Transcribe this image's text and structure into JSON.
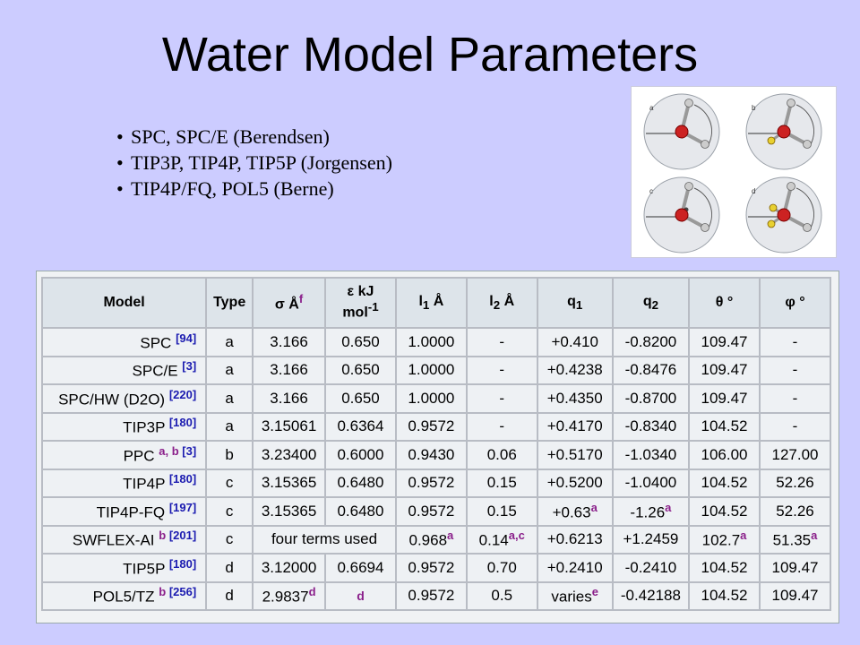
{
  "slide": {
    "title": "Water Model Parameters",
    "bullets": [
      "SPC, SPC/E  (Berendsen)",
      "TIP3P, TIP4P, TIP5P (Jorgensen)",
      "TIP4P/FQ, POL5 (Berne)"
    ]
  },
  "diagram": {
    "panel_labels": [
      "a",
      "b",
      "c",
      "d"
    ],
    "colors": {
      "oxygen": "#cc2222",
      "hydrogen": "#cccccc",
      "site": "#e8d030"
    }
  },
  "table": {
    "headers": [
      "Model",
      "Type",
      "σ Åf",
      "ε kJ mol-1",
      "l1 Å",
      "l2 Å",
      "q1",
      "q2",
      "θ °",
      "φ °"
    ],
    "rows": [
      {
        "model": "SPC",
        "ref": "[94]",
        "type": "a",
        "sigma": "3.166",
        "epsilon": "0.650",
        "l1": "1.0000",
        "l2": "-",
        "q1": "+0.410",
        "q2": "-0.8200",
        "theta": "109.47",
        "phi": "-"
      },
      {
        "model": "SPC/E",
        "ref": "[3]",
        "type": "a",
        "sigma": "3.166",
        "epsilon": "0.650",
        "l1": "1.0000",
        "l2": "-",
        "q1": "+0.4238",
        "q2": "-0.8476",
        "theta": "109.47",
        "phi": "-"
      },
      {
        "model": "SPC/HW (D2O)",
        "ref": "[220]",
        "type": "a",
        "sigma": "3.166",
        "epsilon": "0.650",
        "l1": "1.0000",
        "l2": "-",
        "q1": "+0.4350",
        "q2": "-0.8700",
        "theta": "109.47",
        "phi": "-"
      },
      {
        "model": "TIP3P",
        "ref": "[180]",
        "type": "a",
        "sigma": "3.15061",
        "epsilon": "0.6364",
        "l1": "0.9572",
        "l2": "-",
        "q1": "+0.4170",
        "q2": "-0.8340",
        "theta": "104.52",
        "phi": "-"
      },
      {
        "model": "PPC",
        "sup": "a, b",
        "ref": "[3]",
        "type": "b",
        "sigma": "3.23400",
        "epsilon": "0.6000",
        "l1": "0.9430",
        "l2": "0.06",
        "q1": "+0.5170",
        "q2": "-1.0340",
        "theta": "106.00",
        "phi": "127.00"
      },
      {
        "model": "TIP4P",
        "ref": "[180]",
        "type": "c",
        "sigma": "3.15365",
        "epsilon": "0.6480",
        "l1": "0.9572",
        "l2": "0.15",
        "q1": "+0.5200",
        "q2": "-1.0400",
        "theta": "104.52",
        "phi": "52.26"
      },
      {
        "model": "TIP4P-FQ",
        "ref": "[197]",
        "type": "c",
        "sigma": "3.15365",
        "epsilon": "0.6480",
        "l1": "0.9572",
        "l2": "0.15",
        "q1": "+0.63",
        "q1_sup": "a",
        "q2": "-1.26",
        "q2_sup": "a",
        "theta": "104.52",
        "phi": "52.26"
      },
      {
        "model": "SWFLEX-AI",
        "sup": "b",
        "ref": "[201]",
        "type": "c",
        "sigma_epsilon": "four terms used",
        "l1": "0.968",
        "l1_sup": "a",
        "l2": "0.14",
        "l2_sup": "a,c",
        "q1": "+0.6213",
        "q2": "+1.2459",
        "theta": "102.7",
        "theta_sup": "a",
        "phi": "51.35",
        "phi_sup": "a"
      },
      {
        "model": "TIP5P",
        "ref": "[180]",
        "type": "d",
        "sigma": "3.12000",
        "epsilon": "0.6694",
        "l1": "0.9572",
        "l2": "0.70",
        "q1": "+0.2410",
        "q2": "-0.2410",
        "theta": "104.52",
        "phi": "109.47"
      },
      {
        "model": "POL5/TZ",
        "sup": "b",
        "ref": "[256]",
        "type": "d",
        "sigma": "2.9837",
        "sigma_sup": "d",
        "epsilon": "d",
        "l1": "0.9572",
        "l2": "0.5",
        "q1": "varies",
        "q1_sup": "e",
        "q2": "-0.42188",
        "theta": "104.52",
        "phi": "109.47"
      }
    ]
  }
}
